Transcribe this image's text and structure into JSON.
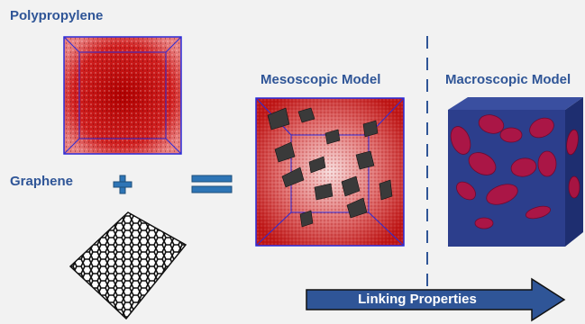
{
  "labels": {
    "polypropylene": "Polypropylene",
    "graphene": "Graphene",
    "mesoscopic": "Mesoscopic Model",
    "macroscopic": "Macroscopic Model",
    "linking": "Linking Properties"
  },
  "colors": {
    "label_blue": "#2f5597",
    "polymer_red": "#c00000",
    "box_edge": "#2b2bd8",
    "operator_blue": "#2e75b6",
    "arrow_fill": "#2f5597",
    "macro_cube": "#2c3e8c"
  },
  "icons": [
    "plus-icon",
    "equals-icon",
    "graphene-sheet-icon",
    "right-arrow-icon"
  ]
}
